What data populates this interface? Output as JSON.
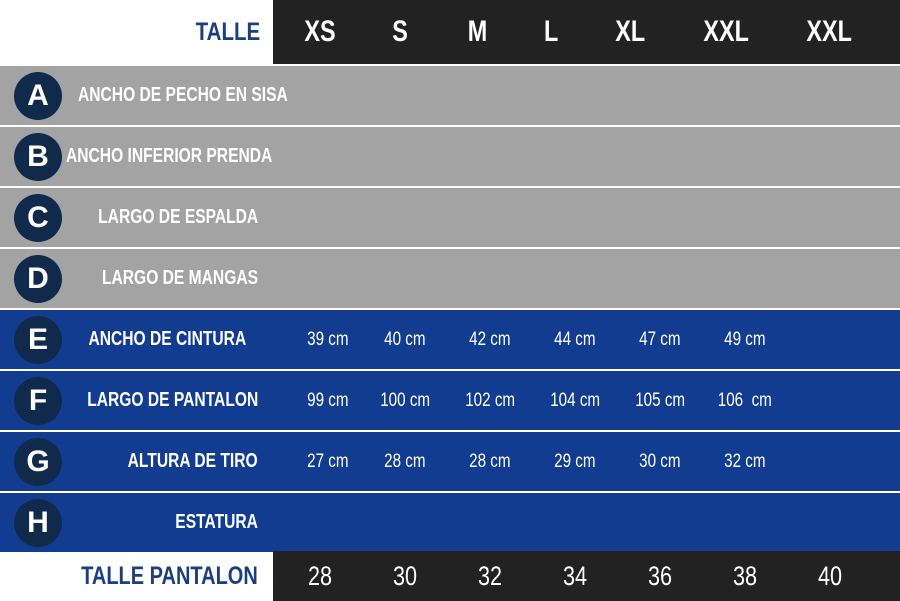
{
  "header": {
    "label": "TALLE",
    "sizes": [
      "XS",
      "S",
      "M",
      "L",
      "XL",
      "XXL",
      "XXL"
    ]
  },
  "rows": [
    {
      "letter": "A",
      "label": "ANCHO DE PECHO EN SISA",
      "values": []
    },
    {
      "letter": "B",
      "label": "ANCHO INFERIOR PRENDA",
      "values": []
    },
    {
      "letter": "C",
      "label": "LARGO DE ESPALDA",
      "values": []
    },
    {
      "letter": "D",
      "label": "LARGO DE MANGAS",
      "values": []
    },
    {
      "letter": "E",
      "label": "ANCHO DE CINTURA",
      "values": [
        "39 cm",
        "40 cm",
        "42 cm",
        "44 cm",
        "47 cm",
        "49 cm"
      ]
    },
    {
      "letter": "F",
      "label": "LARGO DE PANTALON",
      "values": [
        "99 cm",
        "100 cm",
        "102 cm",
        "104 cm",
        "105 cm",
        "106  cm"
      ]
    },
    {
      "letter": "G",
      "label": "ALTURA DE TIRO",
      "values": [
        "27 cm",
        "28 cm",
        "28 cm",
        "29 cm",
        "30 cm",
        "32 cm"
      ]
    },
    {
      "letter": "H",
      "label": "ESTATURA",
      "values": []
    }
  ],
  "footer": {
    "label": "TALLE PANTALON",
    "values": [
      "28",
      "30",
      "32",
      "34",
      "36",
      "38",
      "40"
    ]
  },
  "colors": {
    "header_dark": "#222222",
    "gray_row": "#a3a3a3",
    "blue_row": "#123c8f",
    "badge": "#0f2a4a",
    "label_blue": "#1b3f7c"
  }
}
